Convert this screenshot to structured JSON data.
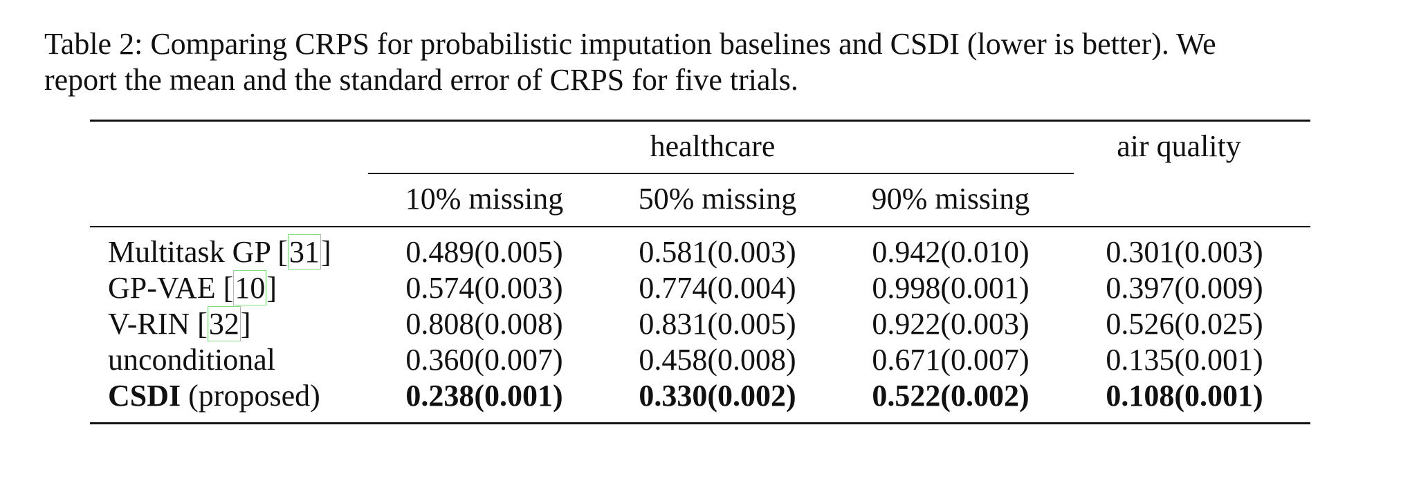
{
  "caption": {
    "line1": "Table 2: Comparing CRPS for probabilistic imputation baselines and CSDI (lower is better). We",
    "line2": "report the mean and the standard error of CRPS for five trials."
  },
  "table": {
    "group_headers": {
      "healthcare": "healthcare",
      "air_quality": "air quality"
    },
    "sub_headers": [
      "10% missing",
      "50% missing",
      "90% missing"
    ],
    "rows": [
      {
        "name": "Multitask GP",
        "citation": "31",
        "suffix": "",
        "values": [
          "0.489(0.005)",
          "0.581(0.003)",
          "0.942(0.010)",
          "0.301(0.003)"
        ]
      },
      {
        "name": "GP-VAE",
        "citation": "10",
        "suffix": "",
        "values": [
          "0.574(0.003)",
          "0.774(0.004)",
          "0.998(0.001)",
          "0.397(0.009)"
        ]
      },
      {
        "name": "V-RIN",
        "citation": "32",
        "suffix": "",
        "values": [
          "0.808(0.008)",
          "0.831(0.005)",
          "0.922(0.003)",
          "0.526(0.025)"
        ]
      },
      {
        "name": "unconditional",
        "citation": "",
        "suffix": "",
        "values": [
          "0.360(0.007)",
          "0.458(0.008)",
          "0.671(0.007)",
          "0.135(0.001)"
        ]
      },
      {
        "name": "CSDI",
        "citation": "",
        "suffix": "(proposed)",
        "values": [
          "0.238(0.001)",
          "0.330(0.002)",
          "0.522(0.002)",
          "0.108(0.001)"
        ]
      }
    ]
  }
}
